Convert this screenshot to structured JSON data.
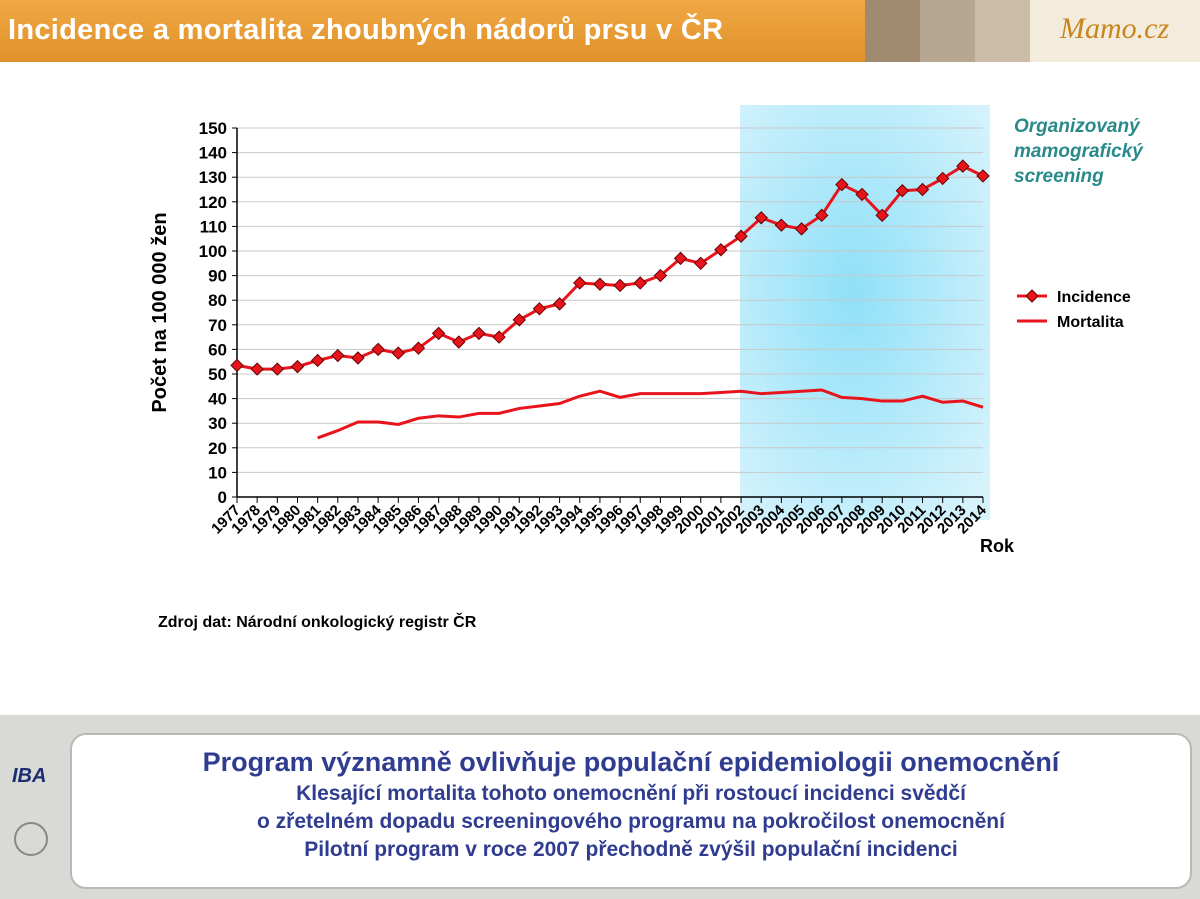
{
  "header": {
    "title": "Incidence a mortalita zhoubných nádorů prsu v ČR",
    "logo": "Mamo.cz"
  },
  "chart_data": {
    "type": "line",
    "y_label": "Počet  na 100 000 žen",
    "x_label": "Rok",
    "annotation": "Organizovaný mamografický screening",
    "categories": [
      "1977",
      "1978",
      "1979",
      "1980",
      "1981",
      "1982",
      "1983",
      "1984",
      "1985",
      "1986",
      "1987",
      "1988",
      "1989",
      "1990",
      "1991",
      "1992",
      "1993",
      "1994",
      "1995",
      "1996",
      "1997",
      "1998",
      "1999",
      "2000",
      "2001",
      "2002",
      "2003",
      "2004",
      "2005",
      "2006",
      "2007",
      "2008",
      "2009",
      "2010",
      "2011",
      "2012",
      "2013",
      "2014"
    ],
    "series": [
      {
        "name": "Incidence",
        "color": "#e8141c",
        "marker": "diamond",
        "values": [
          53.5,
          52,
          52,
          53,
          55.5,
          57.5,
          56.5,
          60,
          58.5,
          60.5,
          66.5,
          63,
          66.5,
          65,
          72,
          76.5,
          78.5,
          87,
          86.5,
          86,
          87,
          90,
          97,
          95,
          100.5,
          106,
          113.5,
          110.5,
          109,
          114.5,
          127,
          123,
          114.5,
          124.5,
          125,
          129.5,
          134.5,
          130.5
        ]
      },
      {
        "name": "Mortalita",
        "color": "#e8141c",
        "values": [
          null,
          null,
          null,
          null,
          24,
          27,
          30.5,
          30.5,
          29.5,
          32,
          33,
          32.5,
          34,
          34,
          36,
          37,
          38,
          41,
          43,
          40.5,
          42,
          42,
          42,
          42,
          42.5,
          43,
          42,
          42.5,
          43,
          43.5,
          40.5,
          40,
          39,
          39,
          41,
          38.5,
          39,
          36.5
        ]
      }
    ],
    "ylim": [
      0,
      150
    ],
    "yticks": [
      0,
      10,
      20,
      30,
      40,
      50,
      60,
      70,
      80,
      90,
      100,
      110,
      120,
      130,
      140,
      150
    ],
    "grid": true,
    "legend": "right"
  },
  "source": "Zdroj dat: Národní onkologický registr ČR",
  "summary": {
    "headline": "Program významně ovlivňuje populační epidemiologii onemocnění",
    "lines": [
      "Klesající mortalita tohoto onemocnění při rostoucí incidenci svědčí",
      "o zřetelném dopadu screeningového programu na pokročilost onemocnění",
      "Pilotní program v roce 2007 přechodně zvýšil populační incidenci"
    ]
  },
  "logos": {
    "left": "IBA"
  }
}
